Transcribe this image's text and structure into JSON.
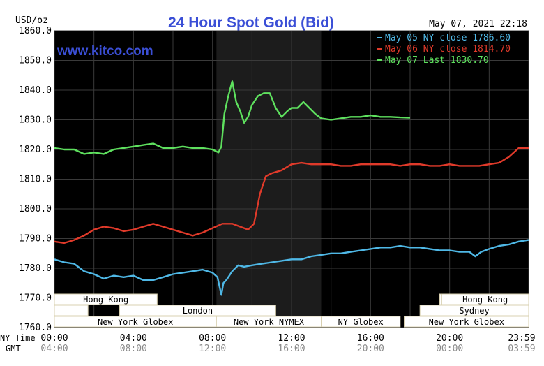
{
  "chart_data": {
    "type": "line",
    "title": "24 Hour Spot Gold (Bid)",
    "brand": "www.kitco.com",
    "timestamp": "May 07, 2021 22:18",
    "ylabel": "USD/oz",
    "ylim": [
      1760,
      1860
    ],
    "yticks": [
      "1860.0",
      "1850.0",
      "1840.0",
      "1830.0",
      "1820.0",
      "1810.0",
      "1800.0",
      "1790.0",
      "1780.0",
      "1770.0",
      "1760.0"
    ],
    "xlim": [
      0,
      24
    ],
    "row_labels": {
      "ny_time": "NY Time",
      "gmt": "GMT"
    },
    "xticks_ny": [
      "00:00",
      "04:00",
      "08:00",
      "12:00",
      "16:00",
      "20:00",
      "23:59"
    ],
    "xticks_gmt": [
      "04:00",
      "08:00",
      "12:00",
      "16:00",
      "20:00",
      "00:00",
      "03:59"
    ],
    "grid": true,
    "legend_position": "top-right",
    "highlight_region": [
      8.2,
      13.5
    ],
    "colors": {
      "plot_bg": "#000000",
      "highlight_bg": "#1c1c1c",
      "grid": "#3a3a3a",
      "axis_text": "#000000",
      "title": "#3b4fd6",
      "session_text": "#000000",
      "session_border": "#d8d0b0",
      "session_fill": "#ffffff"
    },
    "series": [
      {
        "name": "May 05 NY close 1786.60",
        "color": "#4fb8e6",
        "points": [
          [
            0,
            1783
          ],
          [
            0.5,
            1782
          ],
          [
            1,
            1781.5
          ],
          [
            1.5,
            1779
          ],
          [
            2,
            1778
          ],
          [
            2.5,
            1776.5
          ],
          [
            3,
            1777.5
          ],
          [
            3.5,
            1777
          ],
          [
            4,
            1777.5
          ],
          [
            4.5,
            1776
          ],
          [
            5,
            1776
          ],
          [
            5.5,
            1777
          ],
          [
            6,
            1778
          ],
          [
            6.5,
            1778.5
          ],
          [
            7,
            1779
          ],
          [
            7.5,
            1779.5
          ],
          [
            8,
            1778.5
          ],
          [
            8.25,
            1777
          ],
          [
            8.45,
            1771
          ],
          [
            8.55,
            1775
          ],
          [
            8.7,
            1776
          ],
          [
            9,
            1779
          ],
          [
            9.3,
            1781
          ],
          [
            9.6,
            1780.5
          ],
          [
            10,
            1781
          ],
          [
            10.5,
            1781.5
          ],
          [
            11,
            1782
          ],
          [
            11.5,
            1782.5
          ],
          [
            12,
            1783
          ],
          [
            12.5,
            1783
          ],
          [
            13,
            1784
          ],
          [
            13.5,
            1784.5
          ],
          [
            14,
            1785
          ],
          [
            14.5,
            1785
          ],
          [
            15,
            1785.5
          ],
          [
            15.5,
            1786
          ],
          [
            16,
            1786.5
          ],
          [
            16.5,
            1787
          ],
          [
            17,
            1787
          ],
          [
            17.5,
            1787.5
          ],
          [
            18,
            1787
          ],
          [
            18.5,
            1787
          ],
          [
            19,
            1786.5
          ],
          [
            19.5,
            1786
          ],
          [
            20,
            1786
          ],
          [
            20.5,
            1785.5
          ],
          [
            21,
            1785.5
          ],
          [
            21.3,
            1784
          ],
          [
            21.6,
            1785.5
          ],
          [
            22,
            1786.5
          ],
          [
            22.5,
            1787.5
          ],
          [
            23,
            1788
          ],
          [
            23.5,
            1789
          ],
          [
            24,
            1789.5
          ]
        ]
      },
      {
        "name": "May 06 NY close 1814.70",
        "color": "#e03a2a",
        "points": [
          [
            0,
            1789
          ],
          [
            0.5,
            1788.5
          ],
          [
            1,
            1789.5
          ],
          [
            1.5,
            1791
          ],
          [
            2,
            1793
          ],
          [
            2.5,
            1794
          ],
          [
            3,
            1793.5
          ],
          [
            3.5,
            1792.5
          ],
          [
            4,
            1793
          ],
          [
            4.5,
            1794
          ],
          [
            5,
            1795
          ],
          [
            5.5,
            1794
          ],
          [
            6,
            1793
          ],
          [
            6.5,
            1792
          ],
          [
            7,
            1791
          ],
          [
            7.5,
            1792
          ],
          [
            8,
            1793.5
          ],
          [
            8.5,
            1795
          ],
          [
            9,
            1795
          ],
          [
            9.4,
            1794
          ],
          [
            9.8,
            1793
          ],
          [
            10.1,
            1795
          ],
          [
            10.4,
            1805
          ],
          [
            10.7,
            1811
          ],
          [
            11,
            1812
          ],
          [
            11.5,
            1813
          ],
          [
            12,
            1815
          ],
          [
            12.5,
            1815.5
          ],
          [
            13,
            1815
          ],
          [
            13.5,
            1815
          ],
          [
            14,
            1815
          ],
          [
            14.5,
            1814.5
          ],
          [
            15,
            1814.5
          ],
          [
            15.5,
            1815
          ],
          [
            16,
            1815
          ],
          [
            16.5,
            1815
          ],
          [
            17,
            1815
          ],
          [
            17.5,
            1814.5
          ],
          [
            18,
            1815
          ],
          [
            18.5,
            1815
          ],
          [
            19,
            1814.5
          ],
          [
            19.5,
            1814.5
          ],
          [
            20,
            1815
          ],
          [
            20.5,
            1814.5
          ],
          [
            21,
            1814.5
          ],
          [
            21.5,
            1814.5
          ],
          [
            22,
            1815
          ],
          [
            22.5,
            1815.5
          ],
          [
            23,
            1817.5
          ],
          [
            23.5,
            1820.5
          ],
          [
            24,
            1820.5
          ]
        ]
      },
      {
        "name": "May 07 Last 1830.70",
        "color": "#5ee05e",
        "points": [
          [
            0,
            1820.5
          ],
          [
            0.5,
            1820
          ],
          [
            1,
            1820
          ],
          [
            1.5,
            1818.5
          ],
          [
            2,
            1819
          ],
          [
            2.5,
            1818.5
          ],
          [
            3,
            1820
          ],
          [
            3.5,
            1820.5
          ],
          [
            4,
            1821
          ],
          [
            4.5,
            1821.5
          ],
          [
            5,
            1822
          ],
          [
            5.5,
            1820.5
          ],
          [
            6,
            1820.5
          ],
          [
            6.5,
            1821
          ],
          [
            7,
            1820.5
          ],
          [
            7.5,
            1820.5
          ],
          [
            8,
            1820
          ],
          [
            8.3,
            1819
          ],
          [
            8.45,
            1821
          ],
          [
            8.6,
            1832
          ],
          [
            8.8,
            1838
          ],
          [
            9,
            1843
          ],
          [
            9.2,
            1836
          ],
          [
            9.4,
            1833
          ],
          [
            9.6,
            1829
          ],
          [
            9.8,
            1831
          ],
          [
            10,
            1835
          ],
          [
            10.3,
            1838
          ],
          [
            10.6,
            1839
          ],
          [
            10.9,
            1839
          ],
          [
            11.2,
            1834
          ],
          [
            11.5,
            1831
          ],
          [
            11.8,
            1833
          ],
          [
            12,
            1834
          ],
          [
            12.3,
            1834
          ],
          [
            12.6,
            1836
          ],
          [
            12.9,
            1834
          ],
          [
            13.2,
            1832
          ],
          [
            13.5,
            1830.5
          ],
          [
            14,
            1830
          ],
          [
            14.5,
            1830.5
          ],
          [
            15,
            1831
          ],
          [
            15.5,
            1831
          ],
          [
            16,
            1831.5
          ],
          [
            16.5,
            1831
          ],
          [
            17,
            1831
          ],
          [
            17.5,
            1830.8
          ],
          [
            18,
            1830.7
          ]
        ]
      }
    ],
    "sessions": {
      "row1": [
        {
          "label": "Hong Kong",
          "start": 0,
          "end": 5.2
        },
        {
          "label": "",
          "start": 19.5,
          "end": 19.6
        },
        {
          "label": "Hong Kong",
          "start": 19.6,
          "end": 24
        }
      ],
      "row2": [
        {
          "label": "",
          "start": 0,
          "end": 1.7
        },
        {
          "label": "London",
          "start": 3.3,
          "end": 11.2
        },
        {
          "label": "Sydney",
          "start": 18.5,
          "end": 24
        }
      ],
      "row3": [
        {
          "label": "New York Globex",
          "start": 0,
          "end": 8.2
        },
        {
          "label": "New York NYMEX",
          "start": 8.2,
          "end": 13.5
        },
        {
          "label": "NY Globex",
          "start": 13.5,
          "end": 17.5
        },
        {
          "label": "New York Globex",
          "start": 17.7,
          "end": 24
        }
      ]
    }
  }
}
